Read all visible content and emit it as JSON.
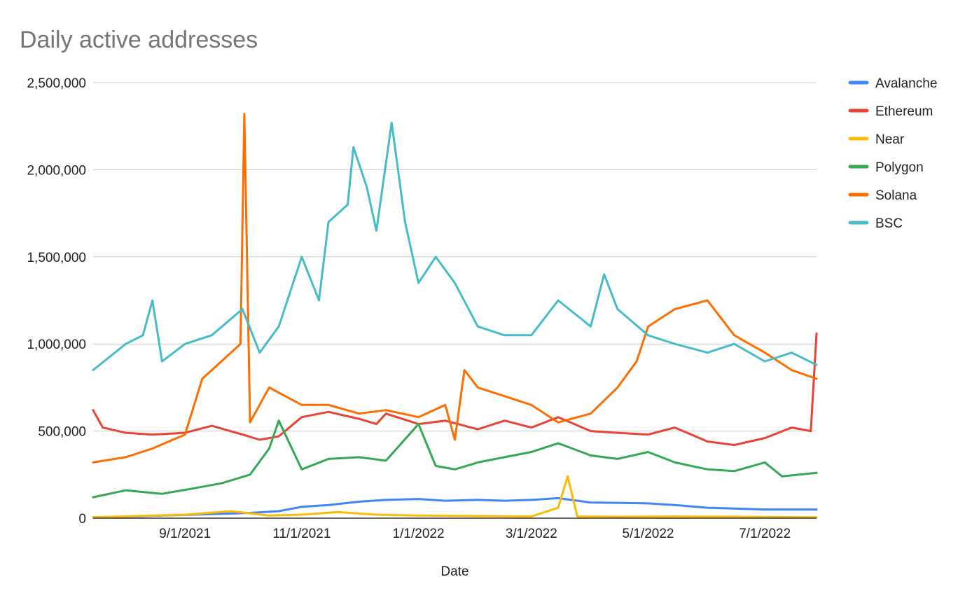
{
  "chart_data": {
    "type": "line",
    "title": "Daily active addresses",
    "xlabel": "Date",
    "ylabel": "",
    "ylim": [
      0,
      2500000
    ],
    "x_range": [
      "2021-07-15",
      "2022-07-28"
    ],
    "yticks": [
      0,
      500000,
      1000000,
      1500000,
      2000000,
      2500000
    ],
    "ytick_labels": [
      "0",
      "500,000",
      "1,000,000",
      "1,500,000",
      "2,000,000",
      "2,500,000"
    ],
    "xticks": [
      "2021-09-01",
      "2021-11-01",
      "2022-01-01",
      "2022-03-01",
      "2022-05-01",
      "2022-07-01"
    ],
    "xtick_labels": [
      "9/1/2021",
      "11/1/2021",
      "1/1/2022",
      "3/1/2022",
      "5/1/2022",
      "7/1/2022"
    ],
    "legend_position": "right",
    "grid": true,
    "series": [
      {
        "name": "Avalanche",
        "color": "#4285f4",
        "points": [
          [
            "2021-07-15",
            5000
          ],
          [
            "2021-08-01",
            8000
          ],
          [
            "2021-08-20",
            15000
          ],
          [
            "2021-09-05",
            20000
          ],
          [
            "2021-09-20",
            25000
          ],
          [
            "2021-10-05",
            30000
          ],
          [
            "2021-10-20",
            40000
          ],
          [
            "2021-11-01",
            65000
          ],
          [
            "2021-11-15",
            75000
          ],
          [
            "2021-12-01",
            95000
          ],
          [
            "2021-12-15",
            105000
          ],
          [
            "2022-01-01",
            110000
          ],
          [
            "2022-01-15",
            100000
          ],
          [
            "2022-02-01",
            105000
          ],
          [
            "2022-02-15",
            100000
          ],
          [
            "2022-03-01",
            105000
          ],
          [
            "2022-03-15",
            115000
          ],
          [
            "2022-04-01",
            90000
          ],
          [
            "2022-04-15",
            88000
          ],
          [
            "2022-05-01",
            85000
          ],
          [
            "2022-05-15",
            75000
          ],
          [
            "2022-06-01",
            60000
          ],
          [
            "2022-06-15",
            55000
          ],
          [
            "2022-07-01",
            50000
          ],
          [
            "2022-07-28",
            50000
          ]
        ]
      },
      {
        "name": "Ethereum",
        "color": "#ea4335",
        "points": [
          [
            "2021-07-15",
            620000
          ],
          [
            "2021-07-20",
            520000
          ],
          [
            "2021-08-01",
            490000
          ],
          [
            "2021-08-15",
            480000
          ],
          [
            "2021-09-01",
            490000
          ],
          [
            "2021-09-15",
            530000
          ],
          [
            "2021-10-01",
            480000
          ],
          [
            "2021-10-10",
            450000
          ],
          [
            "2021-10-20",
            470000
          ],
          [
            "2021-11-01",
            580000
          ],
          [
            "2021-11-15",
            610000
          ],
          [
            "2021-12-01",
            570000
          ],
          [
            "2021-12-10",
            540000
          ],
          [
            "2021-12-15",
            600000
          ],
          [
            "2022-01-01",
            540000
          ],
          [
            "2022-01-15",
            560000
          ],
          [
            "2022-02-01",
            510000
          ],
          [
            "2022-02-15",
            560000
          ],
          [
            "2022-03-01",
            520000
          ],
          [
            "2022-03-15",
            580000
          ],
          [
            "2022-04-01",
            500000
          ],
          [
            "2022-04-15",
            490000
          ],
          [
            "2022-05-01",
            480000
          ],
          [
            "2022-05-15",
            520000
          ],
          [
            "2022-06-01",
            440000
          ],
          [
            "2022-06-15",
            420000
          ],
          [
            "2022-07-01",
            460000
          ],
          [
            "2022-07-15",
            520000
          ],
          [
            "2022-07-25",
            500000
          ],
          [
            "2022-07-28",
            1060000
          ]
        ]
      },
      {
        "name": "Near",
        "color": "#fbbc04",
        "points": [
          [
            "2021-07-15",
            5000
          ],
          [
            "2021-09-01",
            20000
          ],
          [
            "2021-09-25",
            40000
          ],
          [
            "2021-10-15",
            15000
          ],
          [
            "2021-11-01",
            20000
          ],
          [
            "2021-11-20",
            35000
          ],
          [
            "2021-12-10",
            20000
          ],
          [
            "2022-01-01",
            15000
          ],
          [
            "2022-02-01",
            12000
          ],
          [
            "2022-03-01",
            10000
          ],
          [
            "2022-03-15",
            60000
          ],
          [
            "2022-03-20",
            240000
          ],
          [
            "2022-03-25",
            10000
          ],
          [
            "2022-04-15",
            8000
          ],
          [
            "2022-05-15",
            10000
          ],
          [
            "2022-06-15",
            8000
          ],
          [
            "2022-07-28",
            5000
          ]
        ]
      },
      {
        "name": "Polygon",
        "color": "#34a853",
        "points": [
          [
            "2021-07-15",
            120000
          ],
          [
            "2021-08-01",
            160000
          ],
          [
            "2021-08-20",
            140000
          ],
          [
            "2021-09-05",
            170000
          ],
          [
            "2021-09-20",
            200000
          ],
          [
            "2021-10-05",
            250000
          ],
          [
            "2021-10-15",
            400000
          ],
          [
            "2021-10-20",
            560000
          ],
          [
            "2021-11-01",
            280000
          ],
          [
            "2021-11-15",
            340000
          ],
          [
            "2021-12-01",
            350000
          ],
          [
            "2021-12-15",
            330000
          ],
          [
            "2022-01-01",
            540000
          ],
          [
            "2022-01-10",
            300000
          ],
          [
            "2022-01-20",
            280000
          ],
          [
            "2022-02-01",
            320000
          ],
          [
            "2022-02-15",
            350000
          ],
          [
            "2022-03-01",
            380000
          ],
          [
            "2022-03-15",
            430000
          ],
          [
            "2022-04-01",
            360000
          ],
          [
            "2022-04-15",
            340000
          ],
          [
            "2022-05-01",
            380000
          ],
          [
            "2022-05-15",
            320000
          ],
          [
            "2022-06-01",
            280000
          ],
          [
            "2022-06-15",
            270000
          ],
          [
            "2022-07-01",
            320000
          ],
          [
            "2022-07-10",
            240000
          ],
          [
            "2022-07-28",
            260000
          ]
        ]
      },
      {
        "name": "Solana",
        "color": "#ff6d01",
        "points": [
          [
            "2021-07-15",
            320000
          ],
          [
            "2021-08-01",
            350000
          ],
          [
            "2021-08-15",
            400000
          ],
          [
            "2021-09-01",
            480000
          ],
          [
            "2021-09-10",
            800000
          ],
          [
            "2021-09-20",
            900000
          ],
          [
            "2021-09-30",
            1000000
          ],
          [
            "2021-10-02",
            2320000
          ],
          [
            "2021-10-05",
            550000
          ],
          [
            "2021-10-15",
            750000
          ],
          [
            "2021-11-01",
            650000
          ],
          [
            "2021-11-15",
            650000
          ],
          [
            "2021-12-01",
            600000
          ],
          [
            "2021-12-15",
            620000
          ],
          [
            "2022-01-01",
            580000
          ],
          [
            "2022-01-15",
            650000
          ],
          [
            "2022-01-20",
            450000
          ],
          [
            "2022-01-25",
            850000
          ],
          [
            "2022-02-01",
            750000
          ],
          [
            "2022-02-15",
            700000
          ],
          [
            "2022-03-01",
            650000
          ],
          [
            "2022-03-15",
            550000
          ],
          [
            "2022-04-01",
            600000
          ],
          [
            "2022-04-15",
            750000
          ],
          [
            "2022-04-25",
            900000
          ],
          [
            "2022-05-01",
            1100000
          ],
          [
            "2022-05-15",
            1200000
          ],
          [
            "2022-06-01",
            1250000
          ],
          [
            "2022-06-15",
            1050000
          ],
          [
            "2022-07-01",
            950000
          ],
          [
            "2022-07-15",
            850000
          ],
          [
            "2022-07-28",
            800000
          ]
        ]
      },
      {
        "name": "BSC",
        "color": "#46bdc6",
        "points": [
          [
            "2021-07-15",
            850000
          ],
          [
            "2021-08-01",
            1000000
          ],
          [
            "2021-08-10",
            1050000
          ],
          [
            "2021-08-15",
            1250000
          ],
          [
            "2021-08-20",
            900000
          ],
          [
            "2021-09-01",
            1000000
          ],
          [
            "2021-09-15",
            1050000
          ],
          [
            "2021-10-01",
            1200000
          ],
          [
            "2021-10-10",
            950000
          ],
          [
            "2021-10-20",
            1100000
          ],
          [
            "2021-11-01",
            1500000
          ],
          [
            "2021-11-10",
            1250000
          ],
          [
            "2021-11-15",
            1700000
          ],
          [
            "2021-11-25",
            1800000
          ],
          [
            "2021-11-28",
            2130000
          ],
          [
            "2021-12-05",
            1900000
          ],
          [
            "2021-12-10",
            1650000
          ],
          [
            "2021-12-18",
            2270000
          ],
          [
            "2021-12-25",
            1700000
          ],
          [
            "2022-01-01",
            1350000
          ],
          [
            "2022-01-10",
            1500000
          ],
          [
            "2022-01-20",
            1350000
          ],
          [
            "2022-02-01",
            1100000
          ],
          [
            "2022-02-15",
            1050000
          ],
          [
            "2022-03-01",
            1050000
          ],
          [
            "2022-03-15",
            1250000
          ],
          [
            "2022-04-01",
            1100000
          ],
          [
            "2022-04-08",
            1400000
          ],
          [
            "2022-04-15",
            1200000
          ],
          [
            "2022-05-01",
            1050000
          ],
          [
            "2022-05-15",
            1000000
          ],
          [
            "2022-06-01",
            950000
          ],
          [
            "2022-06-15",
            1000000
          ],
          [
            "2022-07-01",
            900000
          ],
          [
            "2022-07-15",
            950000
          ],
          [
            "2022-07-28",
            880000
          ]
        ]
      }
    ]
  }
}
